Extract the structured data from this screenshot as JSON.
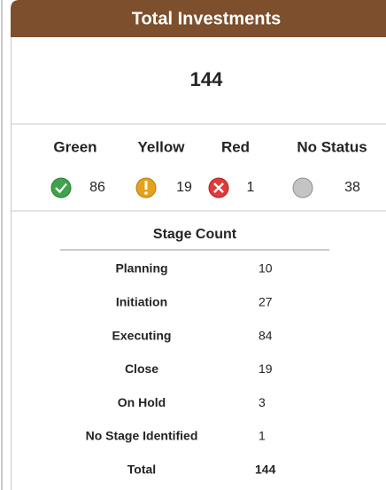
{
  "header": {
    "title": "Total Investments"
  },
  "total": 144,
  "status": [
    {
      "label": "Green",
      "count": 86
    },
    {
      "label": "Yellow",
      "count": 19
    },
    {
      "label": "Red",
      "count": 1
    },
    {
      "label": "No Status",
      "count": 38
    }
  ],
  "stage_table": {
    "title": "Stage Count",
    "rows": [
      [
        "Planning",
        10
      ],
      [
        "Initiation",
        27
      ],
      [
        "Executing",
        84
      ],
      [
        "Close",
        19
      ],
      [
        "On Hold",
        3
      ],
      [
        "No Stage Identified",
        1
      ]
    ],
    "total": [
      "Total",
      144
    ]
  }
}
